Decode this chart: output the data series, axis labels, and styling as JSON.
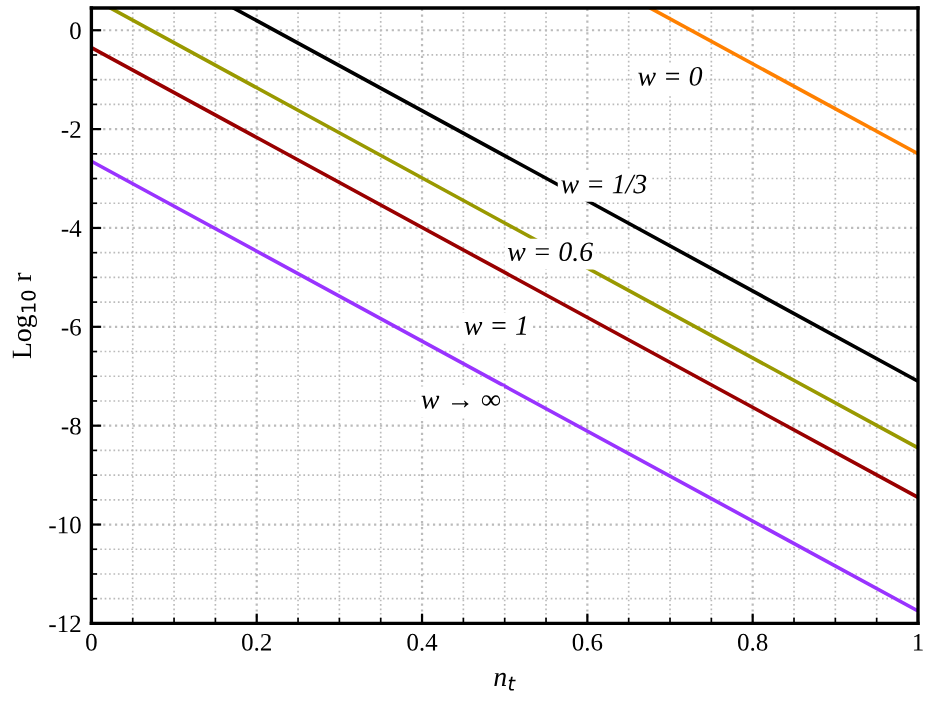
{
  "chart_data": {
    "type": "line",
    "xlabel": "n$_{t}$",
    "ylabel": "Log$_{10}$ r",
    "series": [
      {
        "name": "w = 0",
        "color": "#ff8000",
        "x": [
          0.676,
          1
        ],
        "values": [
          0.45,
          -2.5
        ]
      },
      {
        "name": "w = 1/3",
        "color": "#000000",
        "x": [
          0.172,
          0.6,
          1
        ],
        "values": [
          0.45,
          -3.45,
          -7.1
        ]
      },
      {
        "name": "w = 0.6",
        "color": "#999900",
        "x": [
          0.023,
          0.5,
          1
        ],
        "values": [
          0.45,
          -3.9,
          -8.45
        ]
      },
      {
        "name": "w = 1",
        "color": "#990000",
        "x": [
          0,
          0.5,
          1
        ],
        "values": [
          -0.35,
          -4.9,
          -9.45
        ]
      },
      {
        "name": "w → ∞",
        "color": "#9933ff",
        "x": [
          0,
          0.5,
          1
        ],
        "values": [
          -2.65,
          -7.2,
          -11.75
        ]
      }
    ],
    "xlim": [
      0,
      1
    ],
    "ylim": [
      -12,
      0.45
    ],
    "xticks": [
      0,
      0.2,
      0.4,
      0.6,
      0.8,
      1
    ],
    "yticks": [
      -12,
      -10,
      -8,
      -6,
      -4,
      -2,
      0
    ],
    "grid": true,
    "legend": false,
    "marker": "none",
    "line_style": "solid"
  }
}
